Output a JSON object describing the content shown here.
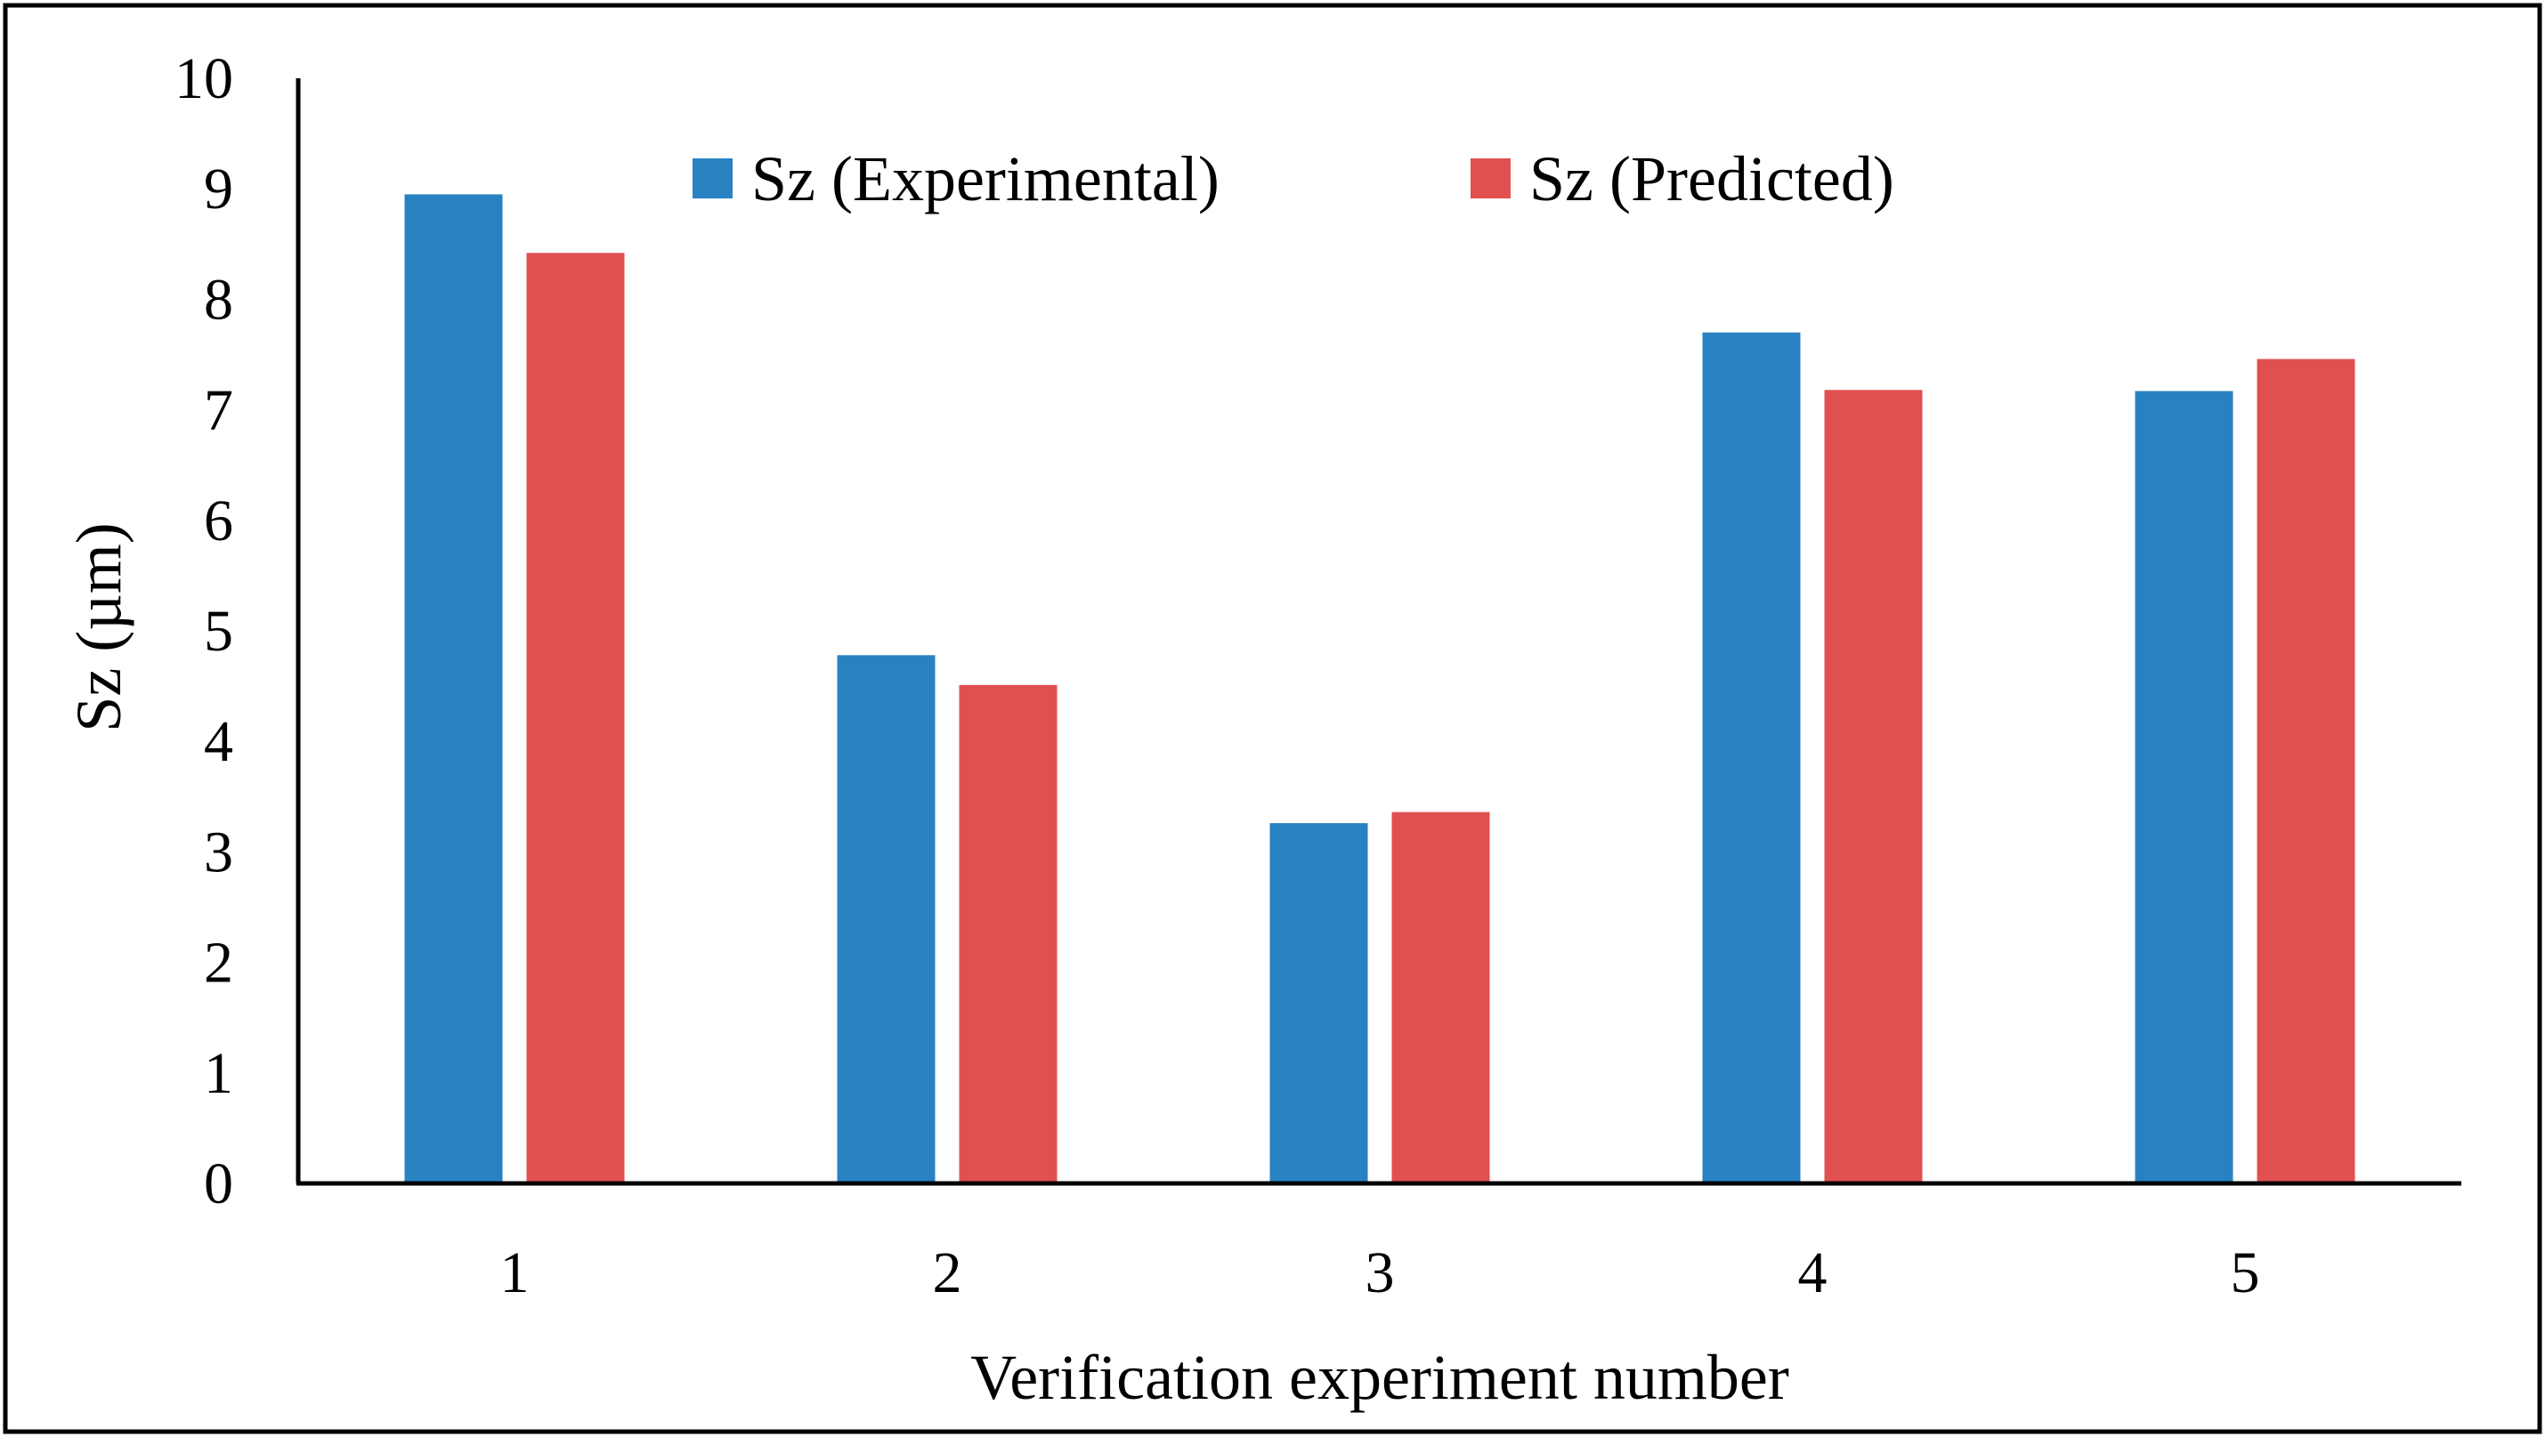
{
  "chart_data": {
    "type": "bar",
    "title": "",
    "xlabel": "Verification experiment number",
    "ylabel": "Sz (µm)",
    "categories": [
      "1",
      "2",
      "3",
      "4",
      "5"
    ],
    "series": [
      {
        "name": "Sz (Experimental)",
        "color": "#2882C2",
        "values": [
          8.95,
          4.78,
          3.26,
          7.7,
          7.17
        ]
      },
      {
        "name": "Sz (Predicted)",
        "color": "#E05050",
        "values": [
          8.42,
          4.51,
          3.36,
          7.18,
          7.46
        ]
      }
    ],
    "ylim": [
      0,
      10
    ],
    "yticks": [
      "0",
      "1",
      "2",
      "3",
      "4",
      "5",
      "6",
      "7",
      "8",
      "9",
      "10"
    ],
    "grid": false,
    "legend_position": "top"
  }
}
